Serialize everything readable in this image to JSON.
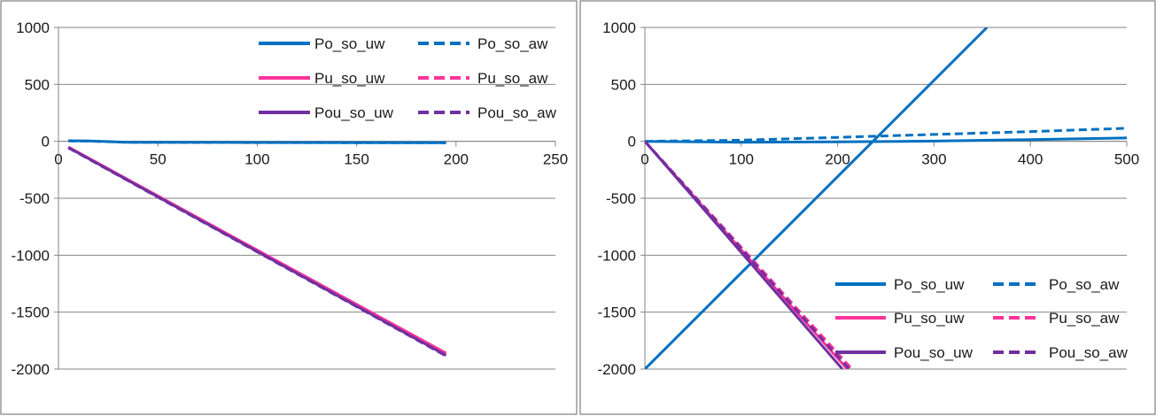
{
  "chart_data": [
    {
      "type": "line",
      "title": "",
      "xlabel": "",
      "ylabel": "",
      "xlim": [
        0,
        250
      ],
      "ylim": [
        -2000,
        1000
      ],
      "x_ticks": [
        0,
        50,
        100,
        150,
        200,
        250
      ],
      "y_ticks": [
        1000,
        500,
        0,
        -500,
        -1000,
        -1500,
        -2000
      ],
      "x_tick_labels": [
        "0",
        "50",
        "100",
        "150",
        "200",
        "250"
      ],
      "y_tick_labels": [
        "1000",
        "500",
        "0",
        "-500",
        "-1000",
        "-1500",
        "-2000"
      ],
      "grid": true,
      "legend": "top-right",
      "series": [
        {
          "name": "Po_so_uw",
          "color": "#0070c0",
          "dash": "solid",
          "x": [
            5,
            15,
            35,
            100,
            195
          ],
          "y": [
            5,
            4,
            -8,
            -10,
            -12
          ]
        },
        {
          "name": "Po_so_aw",
          "color": "#0070c0",
          "dash": "dashed",
          "x": [
            5,
            15,
            35,
            100,
            195
          ],
          "y": [
            3,
            2,
            -9,
            -11,
            -13
          ]
        },
        {
          "name": "Pu_so_uw",
          "color": "#ff3399",
          "dash": "solid",
          "x": [
            5,
            195
          ],
          "y": [
            -50,
            -1860
          ]
        },
        {
          "name": "Pu_so_aw",
          "color": "#ff3399",
          "dash": "dashed",
          "x": [
            5,
            195
          ],
          "y": [
            -52,
            -1865
          ]
        },
        {
          "name": "Pou_so_uw",
          "color": "#7030a0",
          "dash": "solid",
          "x": [
            5,
            195
          ],
          "y": [
            -55,
            -1880
          ]
        },
        {
          "name": "Pou_so_aw",
          "color": "#7030a0",
          "dash": "dashed",
          "x": [
            5,
            195
          ],
          "y": [
            -58,
            -1885
          ]
        }
      ]
    },
    {
      "type": "line",
      "title": "",
      "xlabel": "",
      "ylabel": "",
      "xlim": [
        0,
        500
      ],
      "ylim": [
        -2000,
        1000
      ],
      "x_ticks": [
        0,
        100,
        200,
        300,
        400,
        500
      ],
      "y_ticks": [
        1000,
        500,
        0,
        -500,
        -1000,
        -1500,
        -2000
      ],
      "x_tick_labels": [
        "0",
        "100",
        "200",
        "300",
        "400",
        "500"
      ],
      "y_tick_labels": [
        "1000",
        "500",
        "0",
        "-500",
        "-1000",
        "-1500",
        "-2000"
      ],
      "grid": true,
      "legend": "bottom-right",
      "series": [
        {
          "name": "Po_so_uw",
          "color": "#0070c0",
          "dash": "solid",
          "x": [
            0,
            100,
            200,
            300,
            400,
            500
          ],
          "y": [
            0,
            -8,
            -5,
            2,
            15,
            30
          ]
        },
        {
          "name": "Po_so_aw",
          "color": "#0070c0",
          "dash": "dashed",
          "x": [
            0,
            100,
            200,
            300,
            400,
            500
          ],
          "y": [
            0,
            10,
            35,
            60,
            85,
            115
          ]
        },
        {
          "name": "Po_so_uw",
          "color": "#0070c0",
          "dash": "solid",
          "x": [
            0,
            355
          ],
          "y": [
            -2000,
            1000
          ]
        },
        {
          "name": "Pu_so_uw",
          "color": "#ff3399",
          "dash": "solid",
          "x": [
            0,
            210
          ],
          "y": [
            0,
            -2000
          ]
        },
        {
          "name": "Pu_so_aw",
          "color": "#ff3399",
          "dash": "dashed",
          "x": [
            0,
            215
          ],
          "y": [
            0,
            -2000
          ]
        },
        {
          "name": "Pou_so_uw",
          "color": "#7030a0",
          "dash": "solid",
          "x": [
            0,
            205
          ],
          "y": [
            0,
            -2000
          ]
        },
        {
          "name": "Pou_so_aw",
          "color": "#7030a0",
          "dash": "dashed",
          "x": [
            0,
            212
          ],
          "y": [
            0,
            -2000
          ]
        }
      ]
    }
  ],
  "legends": [
    {
      "entries": [
        {
          "label": "Po_so_uw",
          "color": "#0070c0",
          "dash": "solid"
        },
        {
          "label": "Po_so_aw",
          "color": "#0070c0",
          "dash": "dashed"
        },
        {
          "label": "Pu_so_uw",
          "color": "#ff3399",
          "dash": "solid"
        },
        {
          "label": "Pu_so_aw",
          "color": "#ff3399",
          "dash": "dashed"
        },
        {
          "label": "Pou_so_uw",
          "color": "#7030a0",
          "dash": "solid"
        },
        {
          "label": "Pou_so_aw",
          "color": "#7030a0",
          "dash": "dashed"
        }
      ]
    },
    {
      "entries": [
        {
          "label": "Po_so_uw",
          "color": "#0070c0",
          "dash": "solid"
        },
        {
          "label": "Po_so_aw",
          "color": "#0070c0",
          "dash": "dashed"
        },
        {
          "label": "Pu_so_uw",
          "color": "#ff3399",
          "dash": "solid"
        },
        {
          "label": "Pu_so_aw",
          "color": "#ff3399",
          "dash": "dashed"
        },
        {
          "label": "Pou_so_uw",
          "color": "#7030a0",
          "dash": "solid"
        },
        {
          "label": "Pou_so_aw",
          "color": "#7030a0",
          "dash": "dashed"
        }
      ]
    }
  ]
}
